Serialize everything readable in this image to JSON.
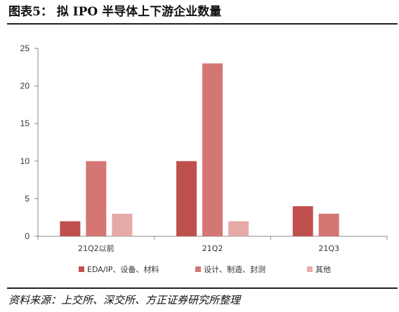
{
  "figure": {
    "title": "图表5：  拟 IPO 半导体上下游企业数量",
    "source": "资料来源：上交所、深交所、方正证券研究所整理"
  },
  "chart_data": {
    "type": "bar",
    "categories": [
      "21Q2以前",
      "21Q2",
      "21Q3"
    ],
    "series": [
      {
        "name": "EDA/IP、设备、材料",
        "color": "#c0504d",
        "values": [
          2,
          10,
          4
        ]
      },
      {
        "name": "设计、制造、封测",
        "color": "#d47674",
        "values": [
          10,
          23,
          3
        ]
      },
      {
        "name": "其他",
        "color": "#e5a9a8",
        "values": [
          3,
          2,
          0
        ]
      }
    ],
    "ylim": [
      0,
      25
    ],
    "yticks": [
      0,
      5,
      10,
      15,
      20,
      25
    ],
    "grid": false,
    "legend": "bottom"
  }
}
